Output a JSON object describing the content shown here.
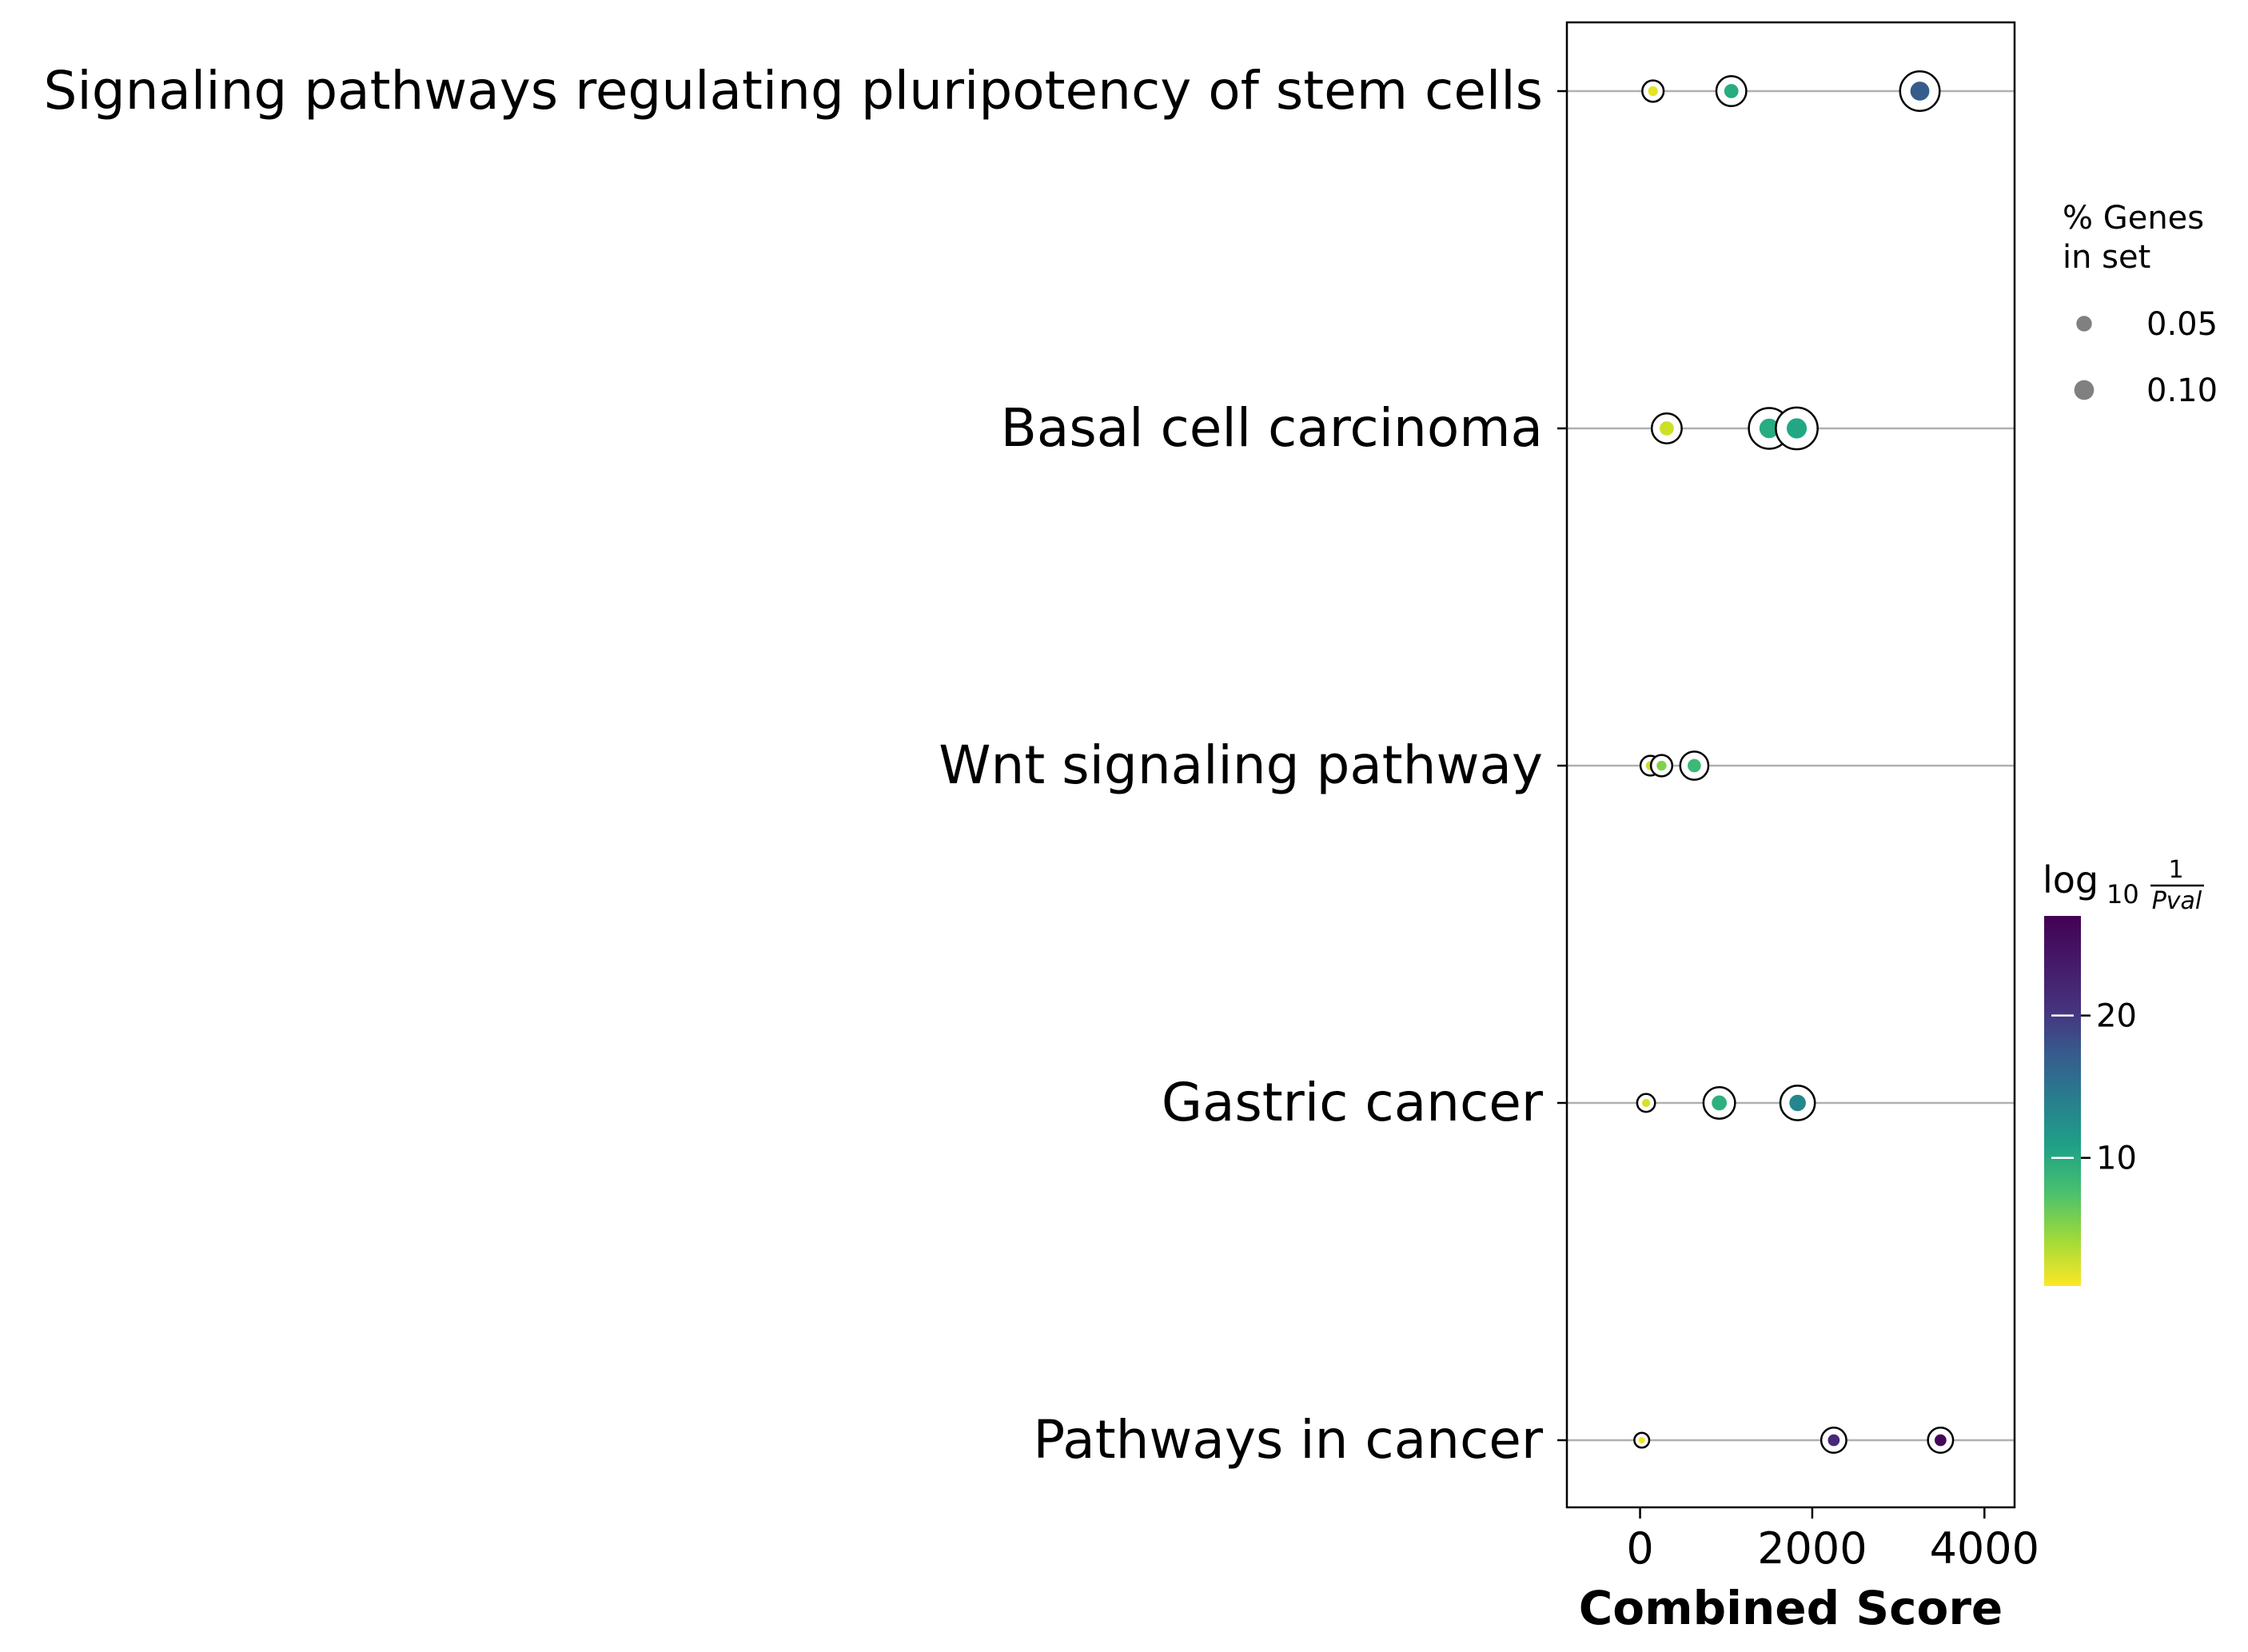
{
  "chart_data": {
    "type": "scatter",
    "xlabel": "Combined Score",
    "ylabel": "",
    "xlim": [
      -850,
      4350
    ],
    "xticks": [
      0,
      2000,
      4000
    ],
    "categories": [
      "Signaling pathways regulating pluripotency of stem cells",
      "Basal cell carcinoma",
      "Wnt signaling pathway",
      "Gastric cancer",
      "Pathways in cancer"
    ],
    "points": [
      {
        "category": "Signaling pathways regulating pluripotency of stem cells",
        "x": 150,
        "log10p": 2.0,
        "genes_pct": 0.02
      },
      {
        "category": "Signaling pathways regulating pluripotency of stem cells",
        "x": 1060,
        "log10p": 11.0,
        "genes_pct": 0.06
      },
      {
        "category": "Signaling pathways regulating pluripotency of stem cells",
        "x": 3250,
        "log10p": 19.5,
        "genes_pct": 0.13
      },
      {
        "category": "Basal cell carcinoma",
        "x": 310,
        "log10p": 3.0,
        "genes_pct": 0.06
      },
      {
        "category": "Basal cell carcinoma",
        "x": 1500,
        "log10p": 11.0,
        "genes_pct": 0.14
      },
      {
        "category": "Basal cell carcinoma",
        "x": 1820,
        "log10p": 11.5,
        "genes_pct": 0.15
      },
      {
        "category": "Wnt signaling pathway",
        "x": 120,
        "log10p": 3.0,
        "genes_pct": 0.015
      },
      {
        "category": "Wnt signaling pathway",
        "x": 250,
        "log10p": 6.0,
        "genes_pct": 0.02
      },
      {
        "category": "Wnt signaling pathway",
        "x": 630,
        "log10p": 9.5,
        "genes_pct": 0.05
      },
      {
        "category": "Gastric cancer",
        "x": 70,
        "log10p": 2.5,
        "genes_pct": 0.01
      },
      {
        "category": "Gastric cancer",
        "x": 920,
        "log10p": 10.5,
        "genes_pct": 0.07
      },
      {
        "category": "Gastric cancer",
        "x": 1830,
        "log10p": 15.0,
        "genes_pct": 0.09
      },
      {
        "category": "Pathways in cancer",
        "x": 20,
        "log10p": 1.5,
        "genes_pct": 0.004
      },
      {
        "category": "Pathways in cancer",
        "x": 2250,
        "log10p": 24.0,
        "genes_pct": 0.035
      },
      {
        "category": "Pathways in cancer",
        "x": 3490,
        "log10p": 26.5,
        "genes_pct": 0.035
      }
    ],
    "size_legend": {
      "title_line1": "% Genes",
      "title_line2": "in set",
      "entries": [
        {
          "label": "0.05",
          "value": 0.05
        },
        {
          "label": "0.10",
          "value": 0.1
        }
      ]
    },
    "colorbar": {
      "title_main": "log",
      "title_sub": "10",
      "title_num": "1",
      "title_den": "Pval",
      "range": [
        1,
        27
      ],
      "ticks": [
        10,
        20
      ],
      "colormap": "viridis_r"
    },
    "colors": {
      "grid_line": "#b0b0b0",
      "marker_edge": "#000000",
      "legend_marker": "#808080"
    },
    "grid": false,
    "legend_position": "right"
  }
}
